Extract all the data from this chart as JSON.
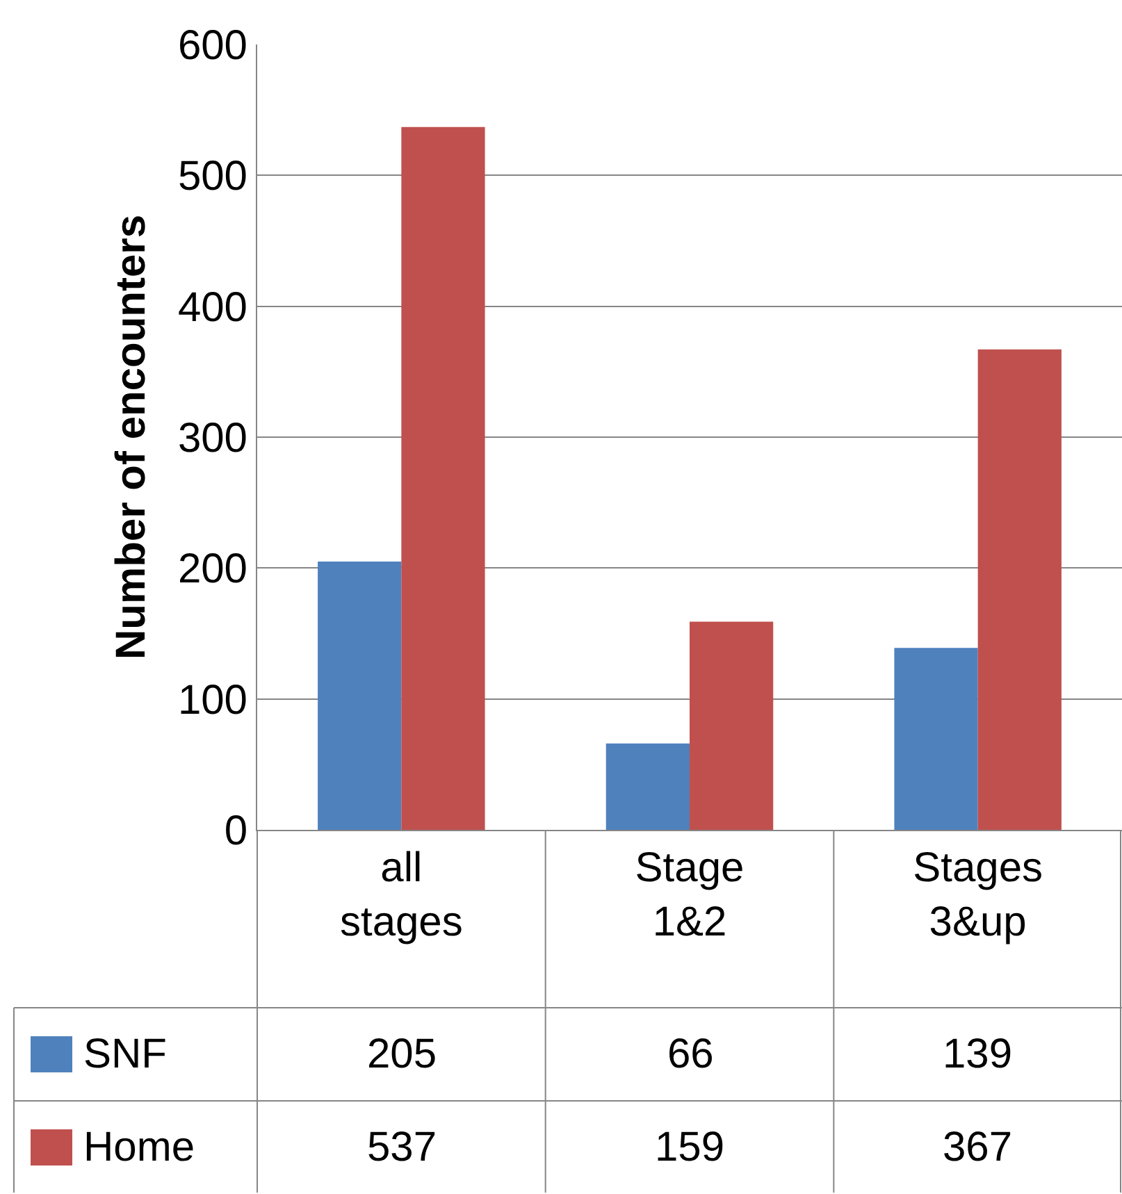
{
  "chart_data": {
    "type": "bar",
    "ylabel": "Number of encounters",
    "categories": [
      "all stages",
      "Stage 1&2",
      "Stages 3&up"
    ],
    "series": [
      {
        "name": "SNF",
        "color": "#4f81bd",
        "values": [
          205,
          66,
          139
        ]
      },
      {
        "name": "Home",
        "color": "#c0504d",
        "values": [
          537,
          159,
          367
        ]
      }
    ],
    "ylim": [
      0,
      600
    ],
    "yticks": [
      0,
      100,
      200,
      300,
      400,
      500,
      600
    ],
    "grid": "y",
    "legend": "bottom",
    "data_labels": true
  }
}
